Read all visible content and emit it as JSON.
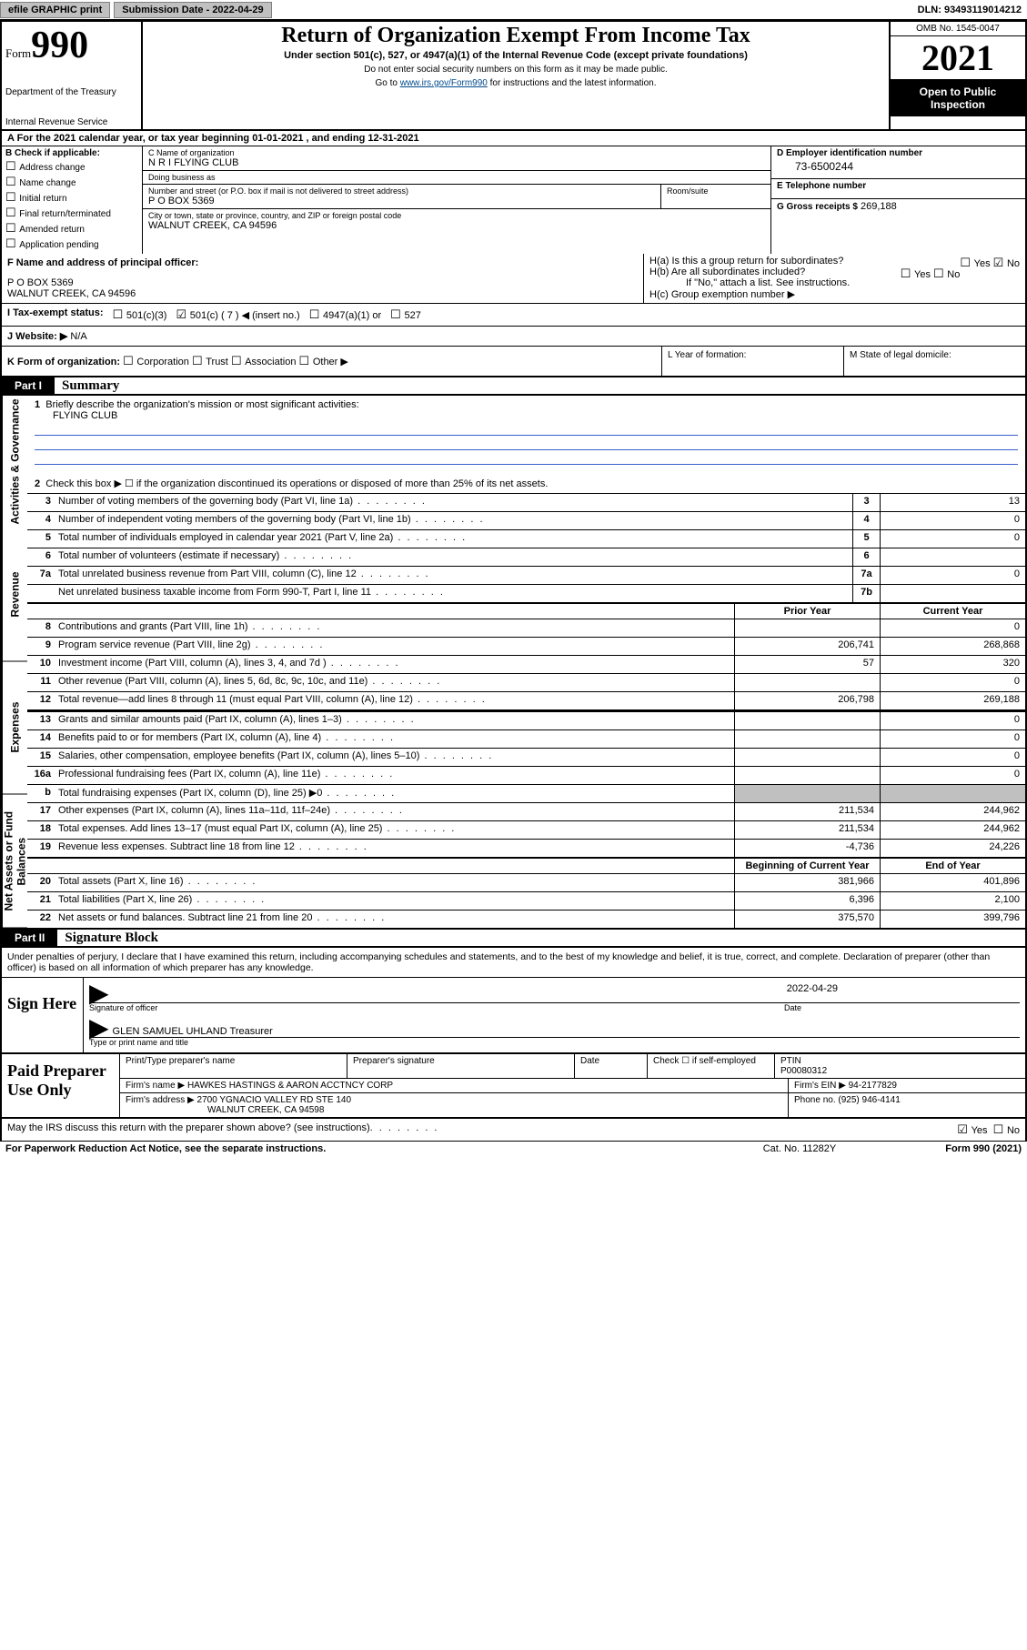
{
  "meta": {
    "dln": "DLN: 93493119014212",
    "submission_label": "Submission Date - 2022-04-29",
    "efile_btn": "efile GRAPHIC print",
    "omb": "OMB No. 1545-0047",
    "tax_year": "2021",
    "open_public": "Open to Public Inspection"
  },
  "header": {
    "form_word": "Form",
    "form_number": "990",
    "title": "Return of Organization Exempt From Income Tax",
    "subtitle": "Under section 501(c), 527, or 4947(a)(1) of the Internal Revenue Code (except private foundations)",
    "note1": "Do not enter social security numbers on this form as it may be made public.",
    "note2_pre": "Go to ",
    "note2_link": "www.irs.gov/Form990",
    "note2_post": " for instructions and the latest information.",
    "dept": "Department of the Treasury",
    "irs": "Internal Revenue Service"
  },
  "row_a": "A For the 2021 calendar year, or tax year beginning 01-01-2021   , and ending 12-31-2021",
  "section_b": {
    "label": "B Check if applicable:",
    "opts": [
      "Address change",
      "Name change",
      "Initial return",
      "Final return/terminated",
      "Amended return",
      "Application pending"
    ]
  },
  "section_c": {
    "name_label": "C Name of organization",
    "name": "N R I FLYING CLUB",
    "dba_label": "Doing business as",
    "dba": "",
    "addr_label": "Number and street (or P.O. box if mail is not delivered to street address)",
    "room_label": "Room/suite",
    "addr": "P O BOX 5369",
    "city_label": "City or town, state or province, country, and ZIP or foreign postal code",
    "city": "WALNUT CREEK, CA  94596"
  },
  "section_d": {
    "label": "D Employer identification number",
    "value": "73-6500244"
  },
  "section_e": {
    "label": "E Telephone number",
    "value": ""
  },
  "section_g": {
    "label": "G Gross receipts $",
    "value": "269,188"
  },
  "section_f": {
    "label": "F  Name and address of principal officer:",
    "line1": "P O BOX 5369",
    "line2": "WALNUT CREEK, CA  94596"
  },
  "section_h": {
    "ha": "H(a)  Is this a group return for subordinates?",
    "ha_yes": "Yes",
    "ha_no": "No",
    "hb": "H(b)  Are all subordinates included?",
    "hb_yes": "Yes",
    "hb_no": "No",
    "hb_note": "If \"No,\" attach a list. See instructions.",
    "hc": "H(c)  Group exemption number ▶"
  },
  "section_i": {
    "label": "I   Tax-exempt status:",
    "opts": [
      "501(c)(3)",
      "501(c) ( 7 ) ◀ (insert no.)",
      "4947(a)(1) or",
      "527"
    ],
    "checked_index": 1
  },
  "section_j": {
    "label": "J   Website: ▶",
    "value": "N/A"
  },
  "section_k": {
    "label": "K Form of organization:",
    "opts": [
      "Corporation",
      "Trust",
      "Association",
      "Other ▶"
    ]
  },
  "section_l": "L Year of formation:",
  "section_m": "M State of legal domicile:",
  "part1": {
    "tag": "Part I",
    "title": "Summary",
    "side_labels": [
      "Activities & Governance",
      "Revenue",
      "Expenses",
      "Net Assets or Fund Balances"
    ],
    "line1": "Briefly describe the organization's mission or most significant activities:",
    "mission": "FLYING CLUB",
    "line2": "Check this box ▶ ☐  if the organization discontinued its operations or disposed of more than 25% of its net assets.",
    "lines_gov": [
      {
        "n": "3",
        "t": "Number of voting members of the governing body (Part VI, line 1a)",
        "box": "3",
        "v": "13"
      },
      {
        "n": "4",
        "t": "Number of independent voting members of the governing body (Part VI, line 1b)",
        "box": "4",
        "v": "0"
      },
      {
        "n": "5",
        "t": "Total number of individuals employed in calendar year 2021 (Part V, line 2a)",
        "box": "5",
        "v": "0"
      },
      {
        "n": "6",
        "t": "Total number of volunteers (estimate if necessary)",
        "box": "6",
        "v": ""
      },
      {
        "n": "7a",
        "t": "Total unrelated business revenue from Part VIII, column (C), line 12",
        "box": "7a",
        "v": "0"
      },
      {
        "n": "",
        "t": "Net unrelated business taxable income from Form 990-T, Part I, line 11",
        "box": "7b",
        "v": ""
      }
    ],
    "col_hdr_prior": "Prior Year",
    "col_hdr_current": "Current Year",
    "lines_rev": [
      {
        "n": "8",
        "t": "Contributions and grants (Part VIII, line 1h)",
        "p": "",
        "c": "0"
      },
      {
        "n": "9",
        "t": "Program service revenue (Part VIII, line 2g)",
        "p": "206,741",
        "c": "268,868"
      },
      {
        "n": "10",
        "t": "Investment income (Part VIII, column (A), lines 3, 4, and 7d )",
        "p": "57",
        "c": "320"
      },
      {
        "n": "11",
        "t": "Other revenue (Part VIII, column (A), lines 5, 6d, 8c, 9c, 10c, and 11e)",
        "p": "",
        "c": "0"
      },
      {
        "n": "12",
        "t": "Total revenue—add lines 8 through 11 (must equal Part VIII, column (A), line 12)",
        "p": "206,798",
        "c": "269,188"
      }
    ],
    "lines_exp": [
      {
        "n": "13",
        "t": "Grants and similar amounts paid (Part IX, column (A), lines 1–3)",
        "p": "",
        "c": "0"
      },
      {
        "n": "14",
        "t": "Benefits paid to or for members (Part IX, column (A), line 4)",
        "p": "",
        "c": "0"
      },
      {
        "n": "15",
        "t": "Salaries, other compensation, employee benefits (Part IX, column (A), lines 5–10)",
        "p": "",
        "c": "0"
      },
      {
        "n": "16a",
        "t": "Professional fundraising fees (Part IX, column (A), line 11e)",
        "p": "",
        "c": "0"
      },
      {
        "n": "b",
        "t": "Total fundraising expenses (Part IX, column (D), line 25) ▶0",
        "p": "shade",
        "c": "shade"
      },
      {
        "n": "17",
        "t": "Other expenses (Part IX, column (A), lines 11a–11d, 11f–24e)",
        "p": "211,534",
        "c": "244,962"
      },
      {
        "n": "18",
        "t": "Total expenses. Add lines 13–17 (must equal Part IX, column (A), line 25)",
        "p": "211,534",
        "c": "244,962"
      },
      {
        "n": "19",
        "t": "Revenue less expenses. Subtract line 18 from line 12",
        "p": "-4,736",
        "c": "24,226"
      }
    ],
    "col_hdr_begin": "Beginning of Current Year",
    "col_hdr_end": "End of Year",
    "lines_net": [
      {
        "n": "20",
        "t": "Total assets (Part X, line 16)",
        "p": "381,966",
        "c": "401,896"
      },
      {
        "n": "21",
        "t": "Total liabilities (Part X, line 26)",
        "p": "6,396",
        "c": "2,100"
      },
      {
        "n": "22",
        "t": "Net assets or fund balances. Subtract line 21 from line 20",
        "p": "375,570",
        "c": "399,796"
      }
    ]
  },
  "part2": {
    "tag": "Part II",
    "title": "Signature Block",
    "intro": "Under penalties of perjury, I declare that I have examined this return, including accompanying schedules and statements, and to the best of my knowledge and belief, it is true, correct, and complete. Declaration of preparer (other than officer) is based on all information of which preparer has any knowledge.",
    "sign_here": "Sign Here",
    "sig_officer": "Signature of officer",
    "sig_date": "Date",
    "sig_date_val": "2022-04-29",
    "officer_name": "GLEN SAMUEL UHLAND  Treasurer",
    "type_name": "Type or print name and title",
    "paid_prep": "Paid Preparer Use Only",
    "prep_name_lbl": "Print/Type preparer's name",
    "prep_sig_lbl": "Preparer's signature",
    "prep_date_lbl": "Date",
    "prep_check_lbl": "Check ☐ if self-employed",
    "ptin_lbl": "PTIN",
    "ptin": "P00080312",
    "firm_name_lbl": "Firm's name    ▶",
    "firm_name": "HAWKES HASTINGS & AARON ACCTNCY CORP",
    "firm_ein_lbl": "Firm's EIN ▶",
    "firm_ein": "94-2177829",
    "firm_addr_lbl": "Firm's address ▶",
    "firm_addr1": "2700 YGNACIO VALLEY RD STE 140",
    "firm_addr2": "WALNUT CREEK, CA  94598",
    "phone_lbl": "Phone no.",
    "phone": "(925) 946-4141",
    "discuss": "May the IRS discuss this return with the preparer shown above? (see instructions)",
    "yes": "Yes",
    "no": "No"
  },
  "footer": {
    "pra": "For Paperwork Reduction Act Notice, see the separate instructions.",
    "cat": "Cat. No. 11282Y",
    "form": "Form 990 (2021)"
  },
  "colors": {
    "link": "#004b8d",
    "underline": "#3a5fcd",
    "shade": "#c0c0c0",
    "btn_bg": "#c0c0c0"
  }
}
